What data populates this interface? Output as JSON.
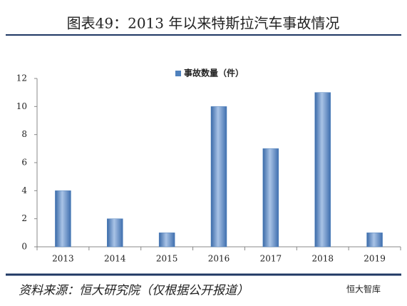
{
  "chart_data": {
    "type": "bar",
    "title": "图表49：2013 年以来特斯拉汽车事故情况",
    "categories": [
      "2013",
      "2014",
      "2015",
      "2016",
      "2017",
      "2018",
      "2019"
    ],
    "series": [
      {
        "name": "事故数量（件）",
        "color": "#4f81bd",
        "values": [
          4,
          2,
          1,
          10,
          7,
          11,
          1
        ]
      }
    ],
    "ylim": [
      0,
      12
    ],
    "yticks": [
      0,
      2,
      4,
      6,
      8,
      10,
      12
    ],
    "grid": false,
    "legend": "top",
    "source": "资料来源：恒大研究院（仅根据公开报道）",
    "watermark": "恒大智库"
  }
}
